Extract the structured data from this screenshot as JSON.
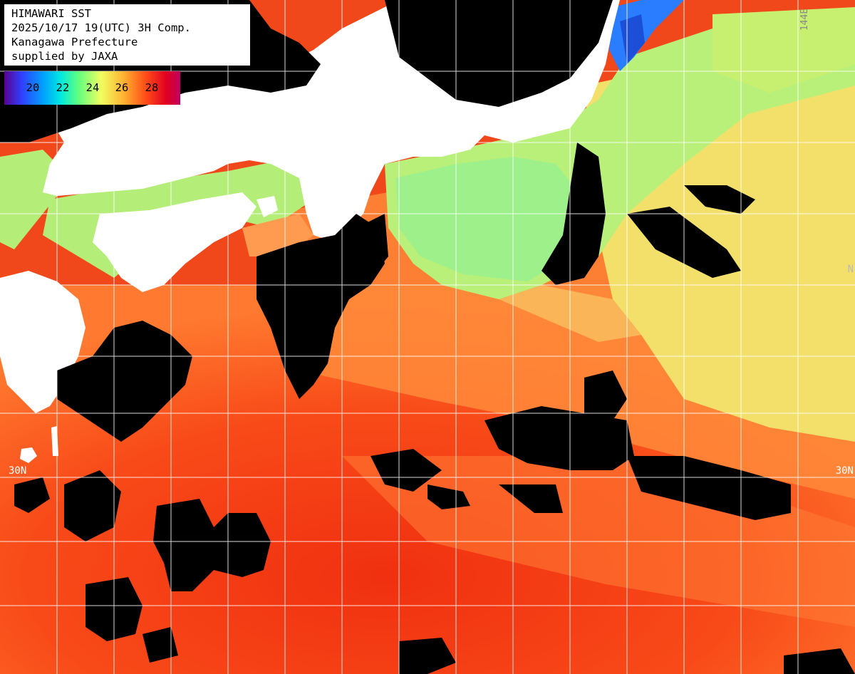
{
  "header": {
    "title": "HIMAWARI SST",
    "datetime": "2025/10/17 19(UTC) 3H Comp.",
    "agency": "Kanagawa Prefecture",
    "credit": "supplied by JAXA"
  },
  "legend": {
    "ticks": [
      "20",
      "22",
      "24",
      "26",
      "28"
    ],
    "colors": [
      "#4b0082",
      "#3050ff",
      "#00c8ff",
      "#50f0a0",
      "#f0ff70",
      "#ffc040",
      "#ff6020",
      "#e00020",
      "#b00060"
    ]
  },
  "grid_labels": {
    "lat_30n_left": "30N",
    "lat_30n_right": "30N",
    "lon_144e": "144E",
    "lat_right_upper": "N"
  },
  "colors": {
    "land": "#ffffff",
    "cloud": "#000000",
    "grid": "#ffffff"
  }
}
